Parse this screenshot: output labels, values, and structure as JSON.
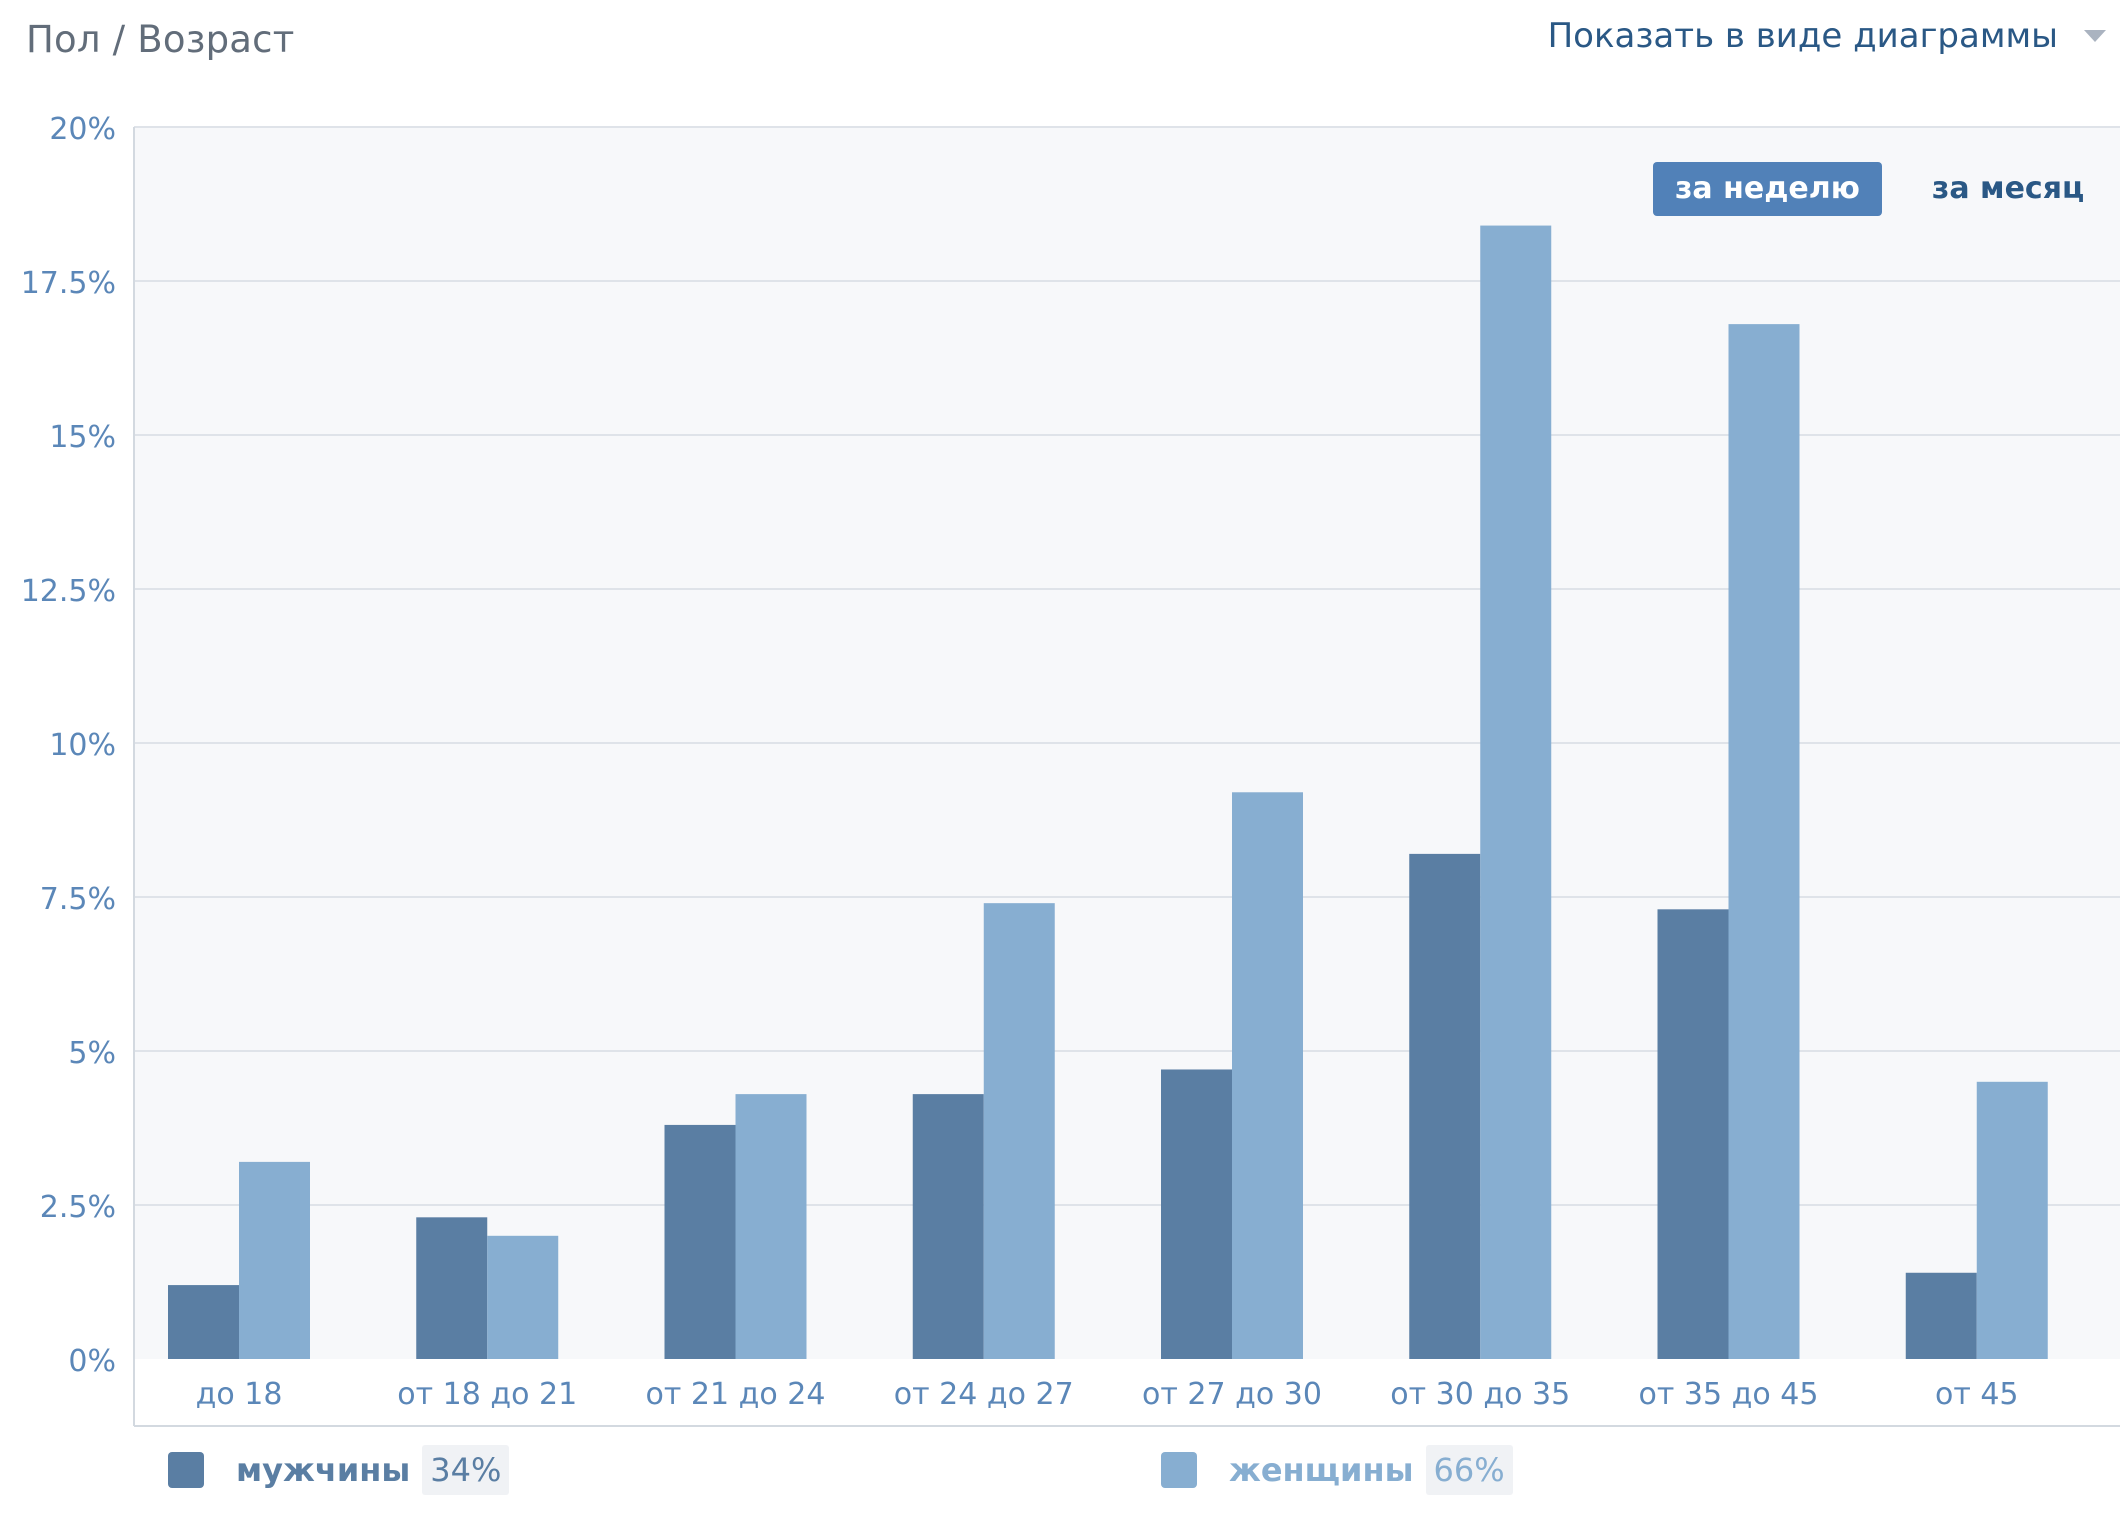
{
  "header": {
    "title": "Пол / Возраст",
    "view_label": "Показать в виде диаграммы"
  },
  "period": {
    "week_label": "за неделю",
    "month_label": "за месяц",
    "active": "week"
  },
  "colors": {
    "men": "#5a7ea3",
    "women": "#87aed1",
    "plot_background": "#f7f8fa",
    "grid": "#dfe3e9",
    "axis_text": "#5b87b8",
    "accent": "#5181b8"
  },
  "legend": {
    "men": {
      "label": "мужчины",
      "percent": "34%"
    },
    "women": {
      "label": "женщины",
      "percent": "66%"
    }
  },
  "chart_data": {
    "type": "bar",
    "categories": [
      "до 18",
      "от 18 до 21",
      "от 21 до 24",
      "от 24 до 27",
      "от 27 до 30",
      "от 30 до 35",
      "от 35 до 45",
      "от 45"
    ],
    "series": [
      {
        "name": "мужчины",
        "values": [
          1.2,
          2.3,
          3.8,
          4.3,
          4.7,
          8.2,
          7.3,
          1.4
        ]
      },
      {
        "name": "женщины",
        "values": [
          3.2,
          2.0,
          4.3,
          7.4,
          9.2,
          18.4,
          16.8,
          4.5
        ]
      }
    ],
    "yticks": [
      "0%",
      "2.5%",
      "5%",
      "7.5%",
      "10%",
      "12.5%",
      "15%",
      "17.5%",
      "20%"
    ],
    "ylim": [
      0,
      20
    ],
    "ytick_step": 2.5,
    "grid": true,
    "legend_position": "bottom"
  }
}
